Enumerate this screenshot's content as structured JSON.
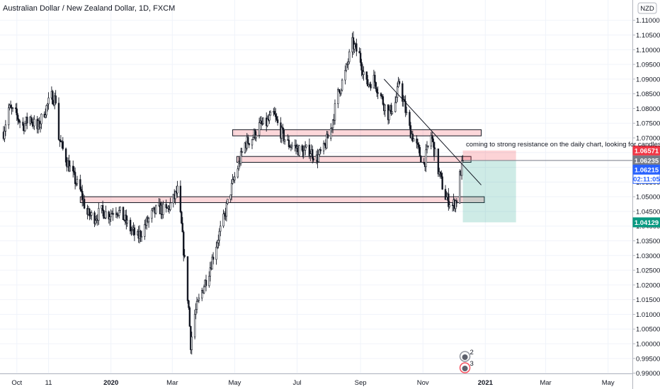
{
  "header": {
    "title": "Australian Dollar / New Zealand Dollar, 1D, FXCM",
    "currency_badge": "NZD"
  },
  "annotation": {
    "note": "coming to strong resistance on the daily chart, looking for candles w"
  },
  "price_tags": [
    {
      "label": "1.06571",
      "value": 1.06571,
      "bg": "#f23645",
      "fg": "#ffffff"
    },
    {
      "label": "1.06235",
      "value": 1.06235,
      "bg": "#787b86",
      "fg": "#ffffff"
    },
    {
      "label": "1.06215",
      "value": 1.06215,
      "bg": "#2962ff",
      "fg": "#ffffff"
    },
    {
      "label": "02:11:05",
      "value": 1.05945,
      "bg": "#ffffff",
      "fg": "#2962ff",
      "border": "#2962ff"
    },
    {
      "label": "1.04129",
      "value": 1.04129,
      "bg": "#089981",
      "fg": "#ffffff"
    }
  ],
  "event_markers": [
    {
      "count": "2",
      "date": "2020-12-10"
    },
    {
      "count": "3",
      "date": "2020-12-10"
    }
  ],
  "chart_data": {
    "type": "candlestick",
    "title": "Australian Dollar / New Zealand Dollar, 1D, FXCM",
    "ylim": [
      0.9875,
      1.1145
    ],
    "xlim": [
      "2019-09-18",
      "2021-05-22"
    ],
    "y_ticks": [
      "1.11000",
      "1.10500",
      "1.10000",
      "1.09500",
      "1.09000",
      "1.08500",
      "1.08000",
      "1.07500",
      "1.07000",
      "1.06500",
      "1.06000",
      "1.05500",
      "1.05000",
      "1.04500",
      "1.04000",
      "1.03500",
      "1.03000",
      "1.02500",
      "1.02000",
      "1.01500",
      "1.01000",
      "1.00500",
      "1.00000",
      "0.99500",
      "0.99000"
    ],
    "x_ticks": [
      {
        "label": "Oct",
        "date": "2019-10-01"
      },
      {
        "label": "11",
        "date": "2019-11-01"
      },
      {
        "label": "2020",
        "date": "2020-01-01"
      },
      {
        "label": "Mar",
        "date": "2020-03-01"
      },
      {
        "label": "May",
        "date": "2020-05-01"
      },
      {
        "label": "Jul",
        "date": "2020-07-01"
      },
      {
        "label": "Sep",
        "date": "2020-09-01"
      },
      {
        "label": "Nov",
        "date": "2020-11-01"
      },
      {
        "label": "2021",
        "date": "2021-01-01"
      },
      {
        "label": "Mar",
        "date": "2021-03-01"
      },
      {
        "label": "May",
        "date": "2021-05-01"
      }
    ],
    "close_path": [
      {
        "date": "2019-09-18",
        "close": 1.072
      },
      {
        "date": "2019-09-23",
        "close": 1.08
      },
      {
        "date": "2019-09-30",
        "close": 1.078
      },
      {
        "date": "2019-10-07",
        "close": 1.074
      },
      {
        "date": "2019-10-14",
        "close": 1.077
      },
      {
        "date": "2019-10-21",
        "close": 1.073
      },
      {
        "date": "2019-10-28",
        "close": 1.079
      },
      {
        "date": "2019-11-04",
        "close": 1.084
      },
      {
        "date": "2019-11-08",
        "close": 1.083
      },
      {
        "date": "2019-11-11",
        "close": 1.07
      },
      {
        "date": "2019-11-18",
        "close": 1.063
      },
      {
        "date": "2019-11-25",
        "close": 1.057
      },
      {
        "date": "2019-12-02",
        "close": 1.052
      },
      {
        "date": "2019-12-09",
        "close": 1.044
      },
      {
        "date": "2019-12-16",
        "close": 1.043
      },
      {
        "date": "2019-12-23",
        "close": 1.045
      },
      {
        "date": "2019-12-30",
        "close": 1.044
      },
      {
        "date": "2020-01-06",
        "close": 1.046
      },
      {
        "date": "2020-01-13",
        "close": 1.043
      },
      {
        "date": "2020-01-20",
        "close": 1.039
      },
      {
        "date": "2020-01-27",
        "close": 1.036
      },
      {
        "date": "2020-02-03",
        "close": 1.04
      },
      {
        "date": "2020-02-10",
        "close": 1.044
      },
      {
        "date": "2020-02-17",
        "close": 1.046
      },
      {
        "date": "2020-02-24",
        "close": 1.045
      },
      {
        "date": "2020-03-02",
        "close": 1.049
      },
      {
        "date": "2020-03-06",
        "close": 1.052
      },
      {
        "date": "2020-03-10",
        "close": 1.04
      },
      {
        "date": "2020-03-13",
        "close": 1.028
      },
      {
        "date": "2020-03-17",
        "close": 1.012
      },
      {
        "date": "2020-03-19",
        "close": 1.0
      },
      {
        "date": "2020-03-23",
        "close": 1.01
      },
      {
        "date": "2020-03-30",
        "close": 1.018
      },
      {
        "date": "2020-04-06",
        "close": 1.025
      },
      {
        "date": "2020-04-13",
        "close": 1.034
      },
      {
        "date": "2020-04-20",
        "close": 1.042
      },
      {
        "date": "2020-04-27",
        "close": 1.052
      },
      {
        "date": "2020-05-04",
        "close": 1.06
      },
      {
        "date": "2020-05-11",
        "close": 1.068
      },
      {
        "date": "2020-05-18",
        "close": 1.07
      },
      {
        "date": "2020-05-25",
        "close": 1.074
      },
      {
        "date": "2020-06-01",
        "close": 1.075
      },
      {
        "date": "2020-06-08",
        "close": 1.078
      },
      {
        "date": "2020-06-15",
        "close": 1.072
      },
      {
        "date": "2020-06-22",
        "close": 1.068
      },
      {
        "date": "2020-06-29",
        "close": 1.067
      },
      {
        "date": "2020-07-06",
        "close": 1.065
      },
      {
        "date": "2020-07-13",
        "close": 1.066
      },
      {
        "date": "2020-07-20",
        "close": 1.063
      },
      {
        "date": "2020-07-27",
        "close": 1.066
      },
      {
        "date": "2020-08-03",
        "close": 1.073
      },
      {
        "date": "2020-08-10",
        "close": 1.085
      },
      {
        "date": "2020-08-17",
        "close": 1.092
      },
      {
        "date": "2020-08-24",
        "close": 1.102
      },
      {
        "date": "2020-08-31",
        "close": 1.098
      },
      {
        "date": "2020-09-07",
        "close": 1.088
      },
      {
        "date": "2020-09-14",
        "close": 1.09
      },
      {
        "date": "2020-09-21",
        "close": 1.084
      },
      {
        "date": "2020-09-28",
        "close": 1.078
      },
      {
        "date": "2020-10-05",
        "close": 1.082
      },
      {
        "date": "2020-10-09",
        "close": 1.089
      },
      {
        "date": "2020-10-12",
        "close": 1.084
      },
      {
        "date": "2020-10-19",
        "close": 1.073
      },
      {
        "date": "2020-10-26",
        "close": 1.067
      },
      {
        "date": "2020-11-02",
        "close": 1.061
      },
      {
        "date": "2020-11-09",
        "close": 1.071
      },
      {
        "date": "2020-11-16",
        "close": 1.059
      },
      {
        "date": "2020-11-23",
        "close": 1.05
      },
      {
        "date": "2020-11-30",
        "close": 1.047
      },
      {
        "date": "2020-12-04",
        "close": 1.049
      },
      {
        "date": "2020-12-07",
        "close": 1.057
      },
      {
        "date": "2020-12-10",
        "close": 1.06215
      }
    ],
    "drawings": {
      "resistance_zones": [
        {
          "date_from": "2020-04-29",
          "date_to": "2020-12-28",
          "price_low": 1.0707,
          "price_high": 1.0728
        },
        {
          "date_from": "2020-05-03",
          "date_to": "2020-12-18",
          "price_low": 1.0617,
          "price_high": 1.0637
        },
        {
          "date_from": "2019-12-02",
          "date_to": "2020-12-31",
          "price_low": 1.048,
          "price_high": 1.05
        }
      ],
      "trendline": {
        "date_from": "2020-09-24",
        "price_from": 1.09,
        "date_to": "2020-12-28",
        "price_to": 1.054
      },
      "short_position": {
        "date_from": "2020-12-10",
        "date_to": "2021-01-31",
        "entry": 1.06235,
        "stop": 1.06571,
        "target": 1.04129
      }
    }
  }
}
